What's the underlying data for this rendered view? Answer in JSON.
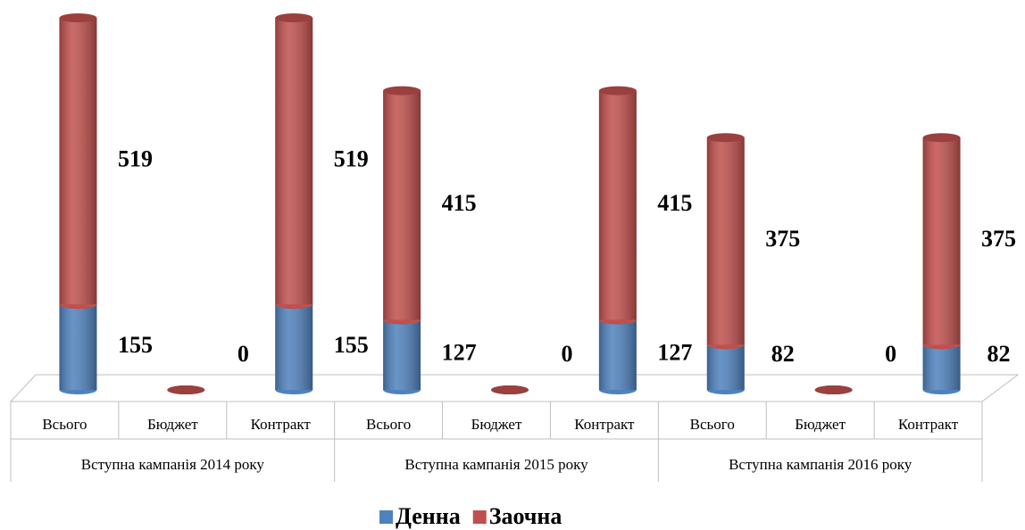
{
  "chart_data": {
    "type": "bar3d-stacked",
    "categories": [
      "Всього",
      "Бюджет",
      "Контракт",
      "Всього",
      "Бюджет",
      "Контракт",
      "Всього",
      "Бюджет",
      "Контракт"
    ],
    "groups": [
      "Вступна кампанія 2014 року",
      "Вступна кампанія 2015 року",
      "Вступна кампанія 2016 року"
    ],
    "series": [
      {
        "name": "Денна",
        "color": "#4f81bd",
        "values": [
          155,
          0,
          155,
          127,
          0,
          127,
          82,
          0,
          82
        ]
      },
      {
        "name": "Заочна",
        "color": "#c0504d",
        "values": [
          519,
          0,
          519,
          415,
          0,
          415,
          375,
          0,
          375
        ]
      }
    ],
    "ylim": [
      0,
      674
    ],
    "legend": "bottom"
  }
}
